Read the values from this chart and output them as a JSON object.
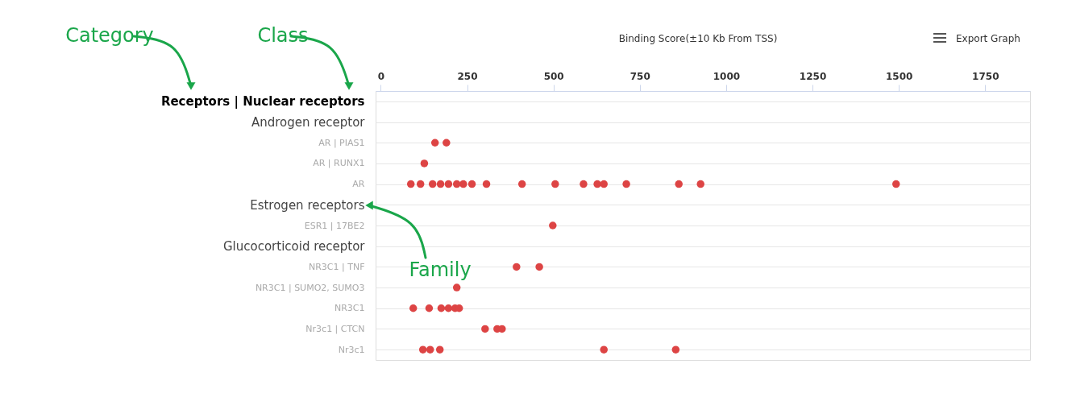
{
  "chart_data": {
    "type": "scatter",
    "orientation": "horizontal",
    "title": "Binding Score(±10 Kb From TSS)",
    "categories": [
      "Receptors | Nuclear receptors",
      "Androgen receptor",
      "AR | PIAS1",
      "AR | RUNX1",
      "AR",
      "Estrogen receptors",
      "ESR1 | 17BE2",
      "Glucocorticoid receptor",
      "NR3C1 | TNF",
      "NR3C1 | SUMO2, SUMO3",
      "NR3C1",
      "Nr3c1 | CTCN",
      "Nr3c1"
    ],
    "series": [
      {
        "color": "#dd4444",
        "values": [
          null,
          null,
          157,
          126,
          87,
          null,
          498,
          null,
          393,
          220,
          94,
          302,
          122
        ]
      },
      {
        "color": "#dd4444",
        "values": [
          null,
          null,
          190,
          null,
          115,
          null,
          null,
          null,
          459,
          null,
          140,
          337,
          143
        ]
      },
      {
        "color": "#dd4444",
        "values": [
          null,
          null,
          null,
          null,
          150,
          null,
          null,
          null,
          null,
          null,
          175,
          351,
          171
        ]
      },
      {
        "color": "#dd4444",
        "values": [
          null,
          null,
          null,
          null,
          173,
          null,
          null,
          null,
          null,
          null,
          196,
          null,
          646
        ]
      },
      {
        "color": "#dd4444",
        "values": [
          null,
          null,
          null,
          null,
          196,
          null,
          null,
          null,
          null,
          null,
          215,
          null,
          854
        ]
      },
      {
        "color": "#dd4444",
        "values": [
          null,
          null,
          null,
          null,
          220,
          null,
          null,
          null,
          null,
          null,
          227,
          null,
          null
        ]
      },
      {
        "color": "#dd4444",
        "values": [
          null,
          null,
          null,
          null,
          239,
          null,
          null,
          null,
          null,
          null,
          null,
          null,
          null
        ]
      },
      {
        "color": "#dd4444",
        "values": [
          null,
          null,
          null,
          null,
          264,
          null,
          null,
          null,
          null,
          null,
          null,
          null,
          null
        ]
      },
      {
        "color": "#dd4444",
        "values": [
          null,
          null,
          null,
          null,
          306,
          null,
          null,
          null,
          null,
          null,
          null,
          null,
          null
        ]
      },
      {
        "color": "#dd4444",
        "values": [
          null,
          null,
          null,
          null,
          409,
          null,
          null,
          null,
          null,
          null,
          null,
          null,
          null
        ]
      },
      {
        "color": "#dd4444",
        "values": [
          null,
          null,
          null,
          null,
          505,
          null,
          null,
          null,
          null,
          null,
          null,
          null,
          null
        ]
      },
      {
        "color": "#dd4444",
        "values": [
          null,
          null,
          null,
          null,
          587,
          null,
          null,
          null,
          null,
          null,
          null,
          null,
          null
        ]
      },
      {
        "color": "#dd4444",
        "values": [
          null,
          null,
          null,
          null,
          627,
          null,
          null,
          null,
          null,
          null,
          null,
          null,
          null
        ]
      },
      {
        "color": "#dd4444",
        "values": [
          null,
          null,
          null,
          null,
          646,
          null,
          null,
          null,
          null,
          null,
          null,
          null,
          null
        ]
      },
      {
        "color": "#dd4444",
        "values": [
          null,
          null,
          null,
          null,
          711,
          null,
          null,
          null,
          null,
          null,
          null,
          null,
          null
        ]
      },
      {
        "color": "#dd4444",
        "values": [
          null,
          null,
          null,
          null,
          863,
          null,
          null,
          null,
          null,
          null,
          null,
          null,
          null
        ]
      },
      {
        "color": "#dd4444",
        "values": [
          null,
          null,
          null,
          null,
          926,
          null,
          null,
          null,
          null,
          null,
          null,
          null,
          null
        ]
      },
      {
        "color": "#dd4444",
        "values": [
          null,
          null,
          null,
          null,
          1492,
          null,
          null,
          null,
          null,
          null,
          null,
          null,
          null
        ]
      }
    ],
    "xlim": [
      -15,
      1880
    ],
    "xticks": [
      0,
      250,
      500,
      750,
      1000,
      1250,
      1500,
      1750
    ],
    "grid": "y",
    "marker": "circle",
    "annotations": [
      "Category",
      "Class",
      "Family",
      "Export Graph"
    ]
  }
}
